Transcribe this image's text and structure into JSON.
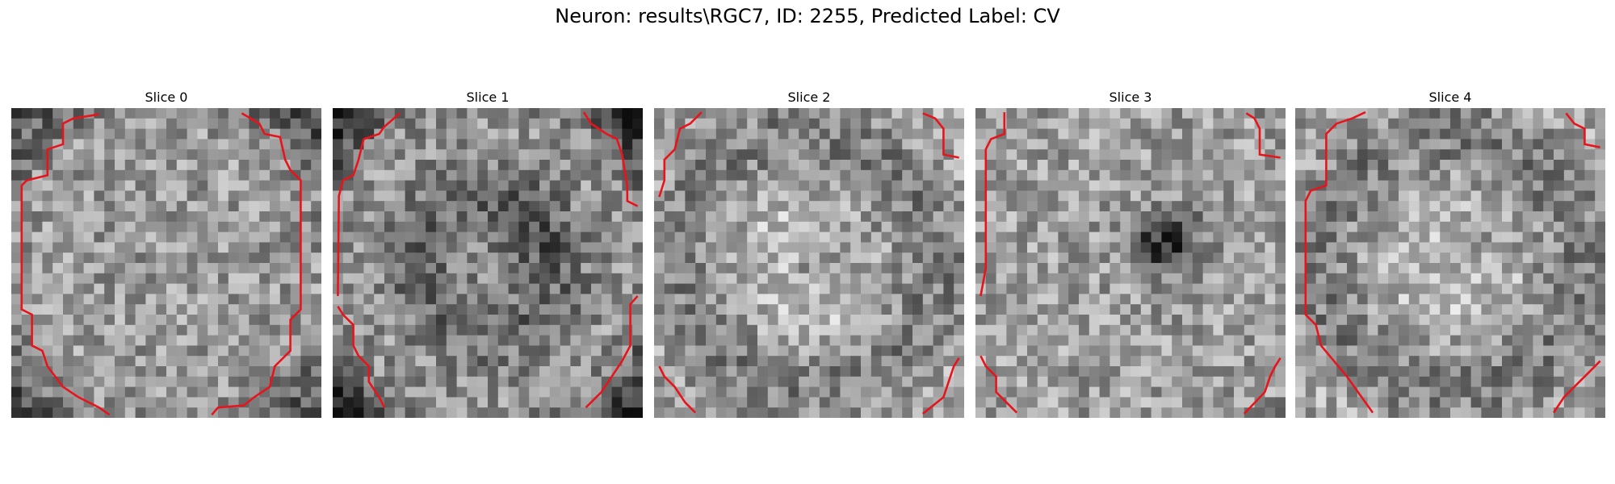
{
  "figure": {
    "title": "Neuron: results\\RGC7, ID: 2255, Predicted Label: CV"
  },
  "panels": [
    {
      "title": "Slice 0",
      "profile": "uniform",
      "contour": "octagon",
      "dark_center": 0.0,
      "seed": 11
    },
    {
      "title": "Slice 1",
      "profile": "ring-dark",
      "contour": "octagon-open",
      "dark_center": 0.25,
      "seed": 23
    },
    {
      "title": "Slice 2",
      "profile": "ring-light",
      "contour": "corners",
      "dark_center": 0.3,
      "seed": 37
    },
    {
      "title": "Slice 3",
      "profile": "center-dark",
      "contour": "corners-left",
      "dark_center": 0.85,
      "seed": 41
    },
    {
      "title": "Slice 4",
      "profile": "ring-light",
      "contour": "corners-left-long",
      "dark_center": 0.2,
      "seed": 59
    }
  ],
  "colors": {
    "contour": "#e8141c"
  }
}
